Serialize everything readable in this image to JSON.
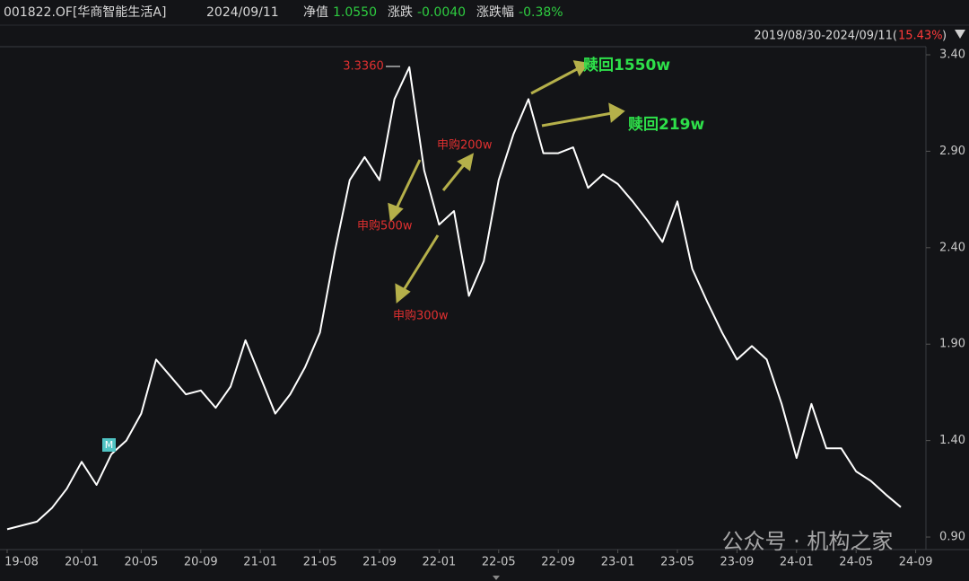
{
  "chart_data": {
    "type": "line",
    "title": "001822.OF[华商智能生活A]",
    "date": "2024/09/11",
    "stats": [
      {
        "label": "净值",
        "value": "1.0550",
        "color": "#2ecc40"
      },
      {
        "label": "涨跌",
        "value": "-0.0040",
        "color": "#2ecc40"
      },
      {
        "label": "涨跌幅",
        "value": "-0.38%",
        "color": "#2ecc40"
      }
    ],
    "range_label": "2019/08/30-2024/09/11(",
    "range_change": "15.43%",
    "range_close": ")",
    "categories": [
      "19-08",
      null,
      null,
      null,
      null,
      "20-01",
      null,
      null,
      null,
      "20-05",
      null,
      null,
      null,
      "20-09",
      null,
      null,
      null,
      "21-01",
      null,
      null,
      null,
      "21-05",
      null,
      null,
      null,
      "21-09",
      null,
      null,
      null,
      "22-01",
      null,
      null,
      null,
      "22-05",
      null,
      null,
      null,
      "22-09",
      null,
      null,
      null,
      "23-01",
      null,
      null,
      null,
      "23-05",
      null,
      null,
      null,
      "23-09",
      null,
      null,
      null,
      "24-01",
      null,
      null,
      null,
      "24-05",
      null,
      null,
      null,
      "24-09"
    ],
    "values": [
      0.94,
      0.96,
      0.98,
      1.05,
      1.15,
      1.29,
      1.17,
      1.33,
      1.4,
      1.54,
      1.82,
      1.73,
      1.64,
      1.66,
      1.57,
      1.68,
      1.92,
      1.73,
      1.54,
      1.64,
      1.78,
      1.96,
      2.38,
      2.75,
      2.87,
      2.75,
      3.17,
      3.336,
      2.8,
      2.52,
      2.59,
      2.15,
      2.33,
      2.75,
      2.99,
      3.17,
      2.89,
      2.89,
      2.92,
      2.71,
      2.78,
      2.73,
      2.64,
      2.54,
      2.43,
      2.64,
      2.29,
      2.12,
      1.96,
      1.82,
      1.89,
      1.82,
      1.59,
      1.31,
      1.59,
      1.36,
      1.36,
      1.24,
      1.19,
      1.12,
      1.055,
      null
    ],
    "color": "#ffffff",
    "ylim": [
      0.835,
      3.442
    ],
    "yticks": [
      {
        "value": 0.9,
        "label": "0.90"
      },
      {
        "value": 1.4,
        "label": "1.40"
      },
      {
        "value": 1.9,
        "label": "1.90"
      },
      {
        "value": 2.4,
        "label": "2.40"
      },
      {
        "value": 2.9,
        "label": "2.90"
      },
      {
        "value": 3.4,
        "label": "3.40"
      }
    ],
    "annotations": [
      "3.3360",
      "申购500w",
      "申购200w",
      "申购300w",
      "赎回1550w",
      "赎回219w",
      "M"
    ],
    "watermark": "公众号 · 机构之家"
  }
}
